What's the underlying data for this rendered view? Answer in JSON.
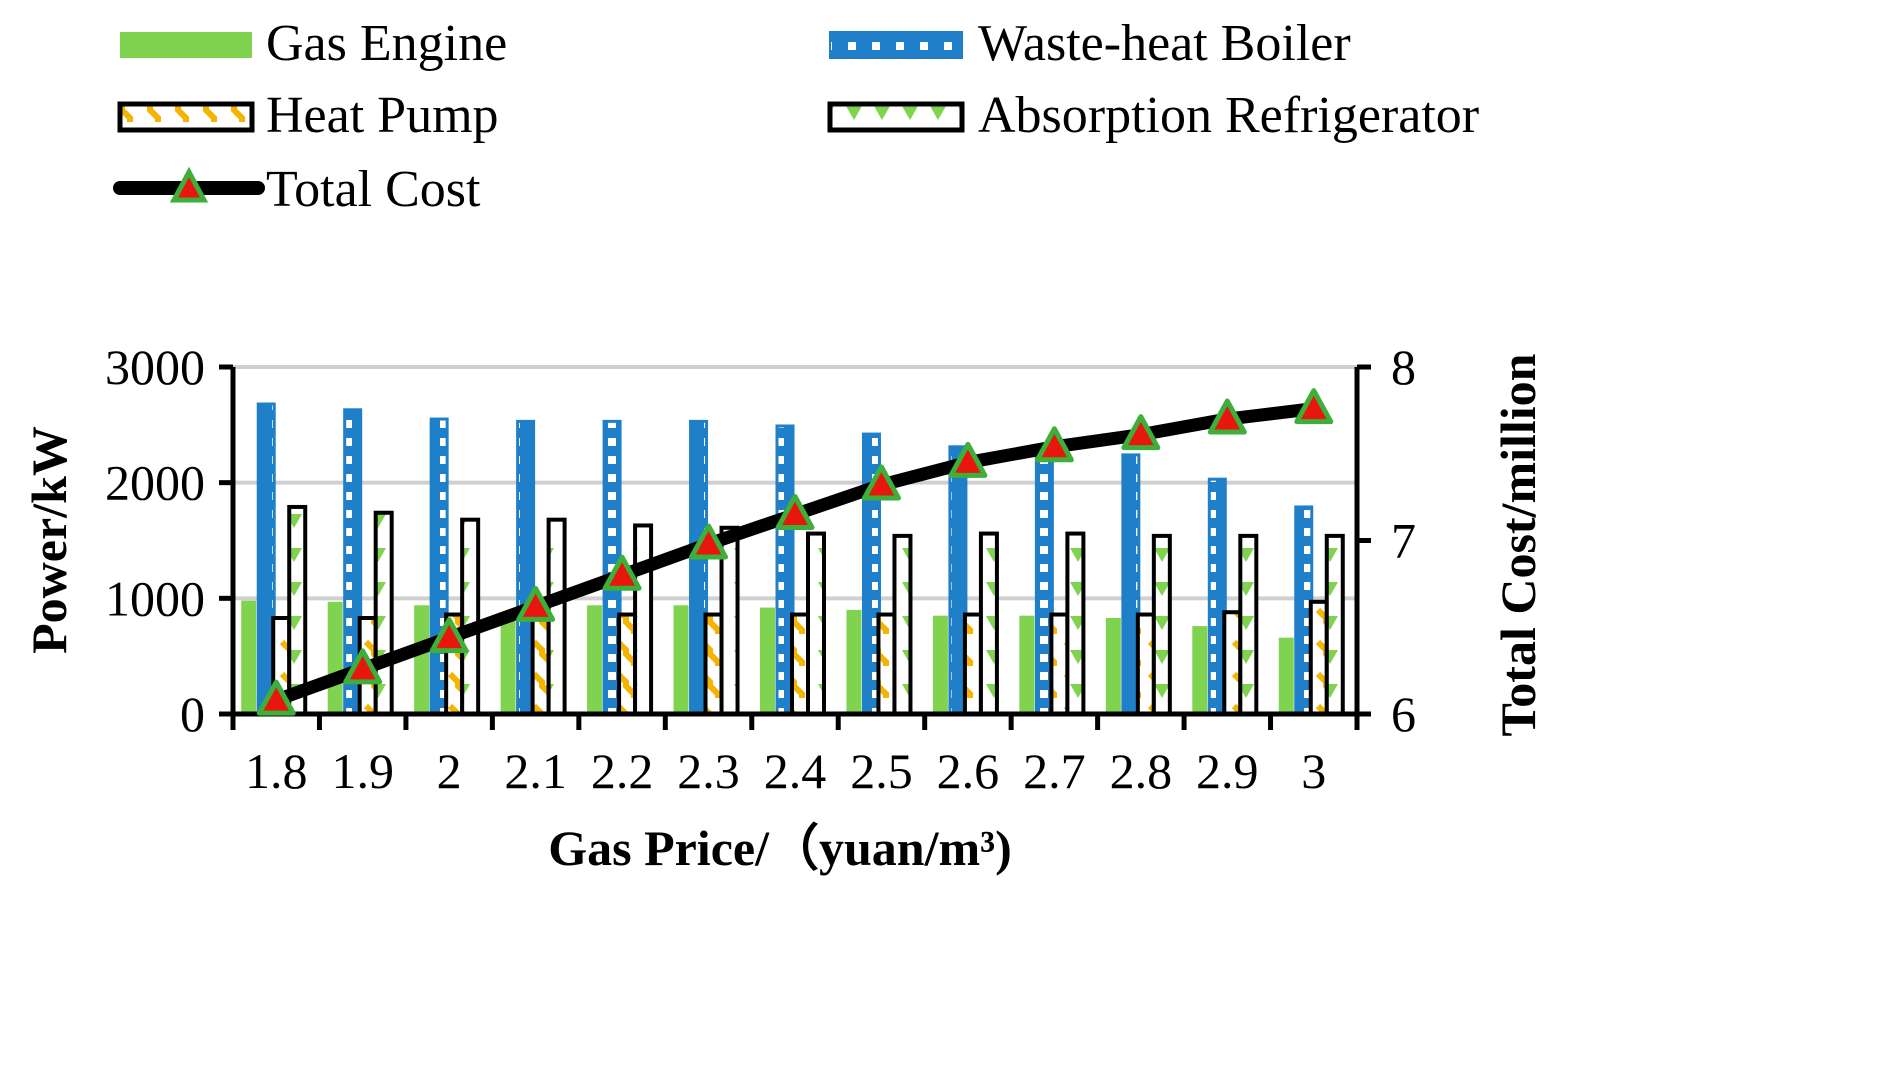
{
  "chart_data": {
    "type": "bar",
    "categories": [
      "1.8",
      "1.9",
      "2",
      "2.1",
      "2.2",
      "2.3",
      "2.4",
      "2.5",
      "2.6",
      "2.7",
      "2.8",
      "2.9",
      "3"
    ],
    "series": [
      {
        "name": "Gas Engine",
        "axis": "left",
        "kind": "bar",
        "color": "#7FD34E",
        "values": [
          980,
          970,
          940,
          830,
          940,
          940,
          920,
          900,
          850,
          850,
          830,
          760,
          660
        ]
      },
      {
        "name": "Waste-heat Boiler",
        "axis": "left",
        "kind": "bar",
        "color": "#1F7FC9",
        "values": [
          2680,
          2630,
          2550,
          2530,
          2530,
          2530,
          2490,
          2420,
          2310,
          2310,
          2240,
          2030,
          1790
        ]
      },
      {
        "name": "Heat Pump",
        "axis": "left",
        "kind": "bar",
        "color": "#F4B400",
        "values": [
          830,
          830,
          860,
          860,
          860,
          860,
          860,
          860,
          860,
          860,
          860,
          880,
          970
        ]
      },
      {
        "name": "Absorption Refrigerator",
        "axis": "left",
        "kind": "bar",
        "color": "#7FD34E",
        "values": [
          1790,
          1740,
          1680,
          1680,
          1630,
          1610,
          1560,
          1540,
          1560,
          1560,
          1540,
          1540,
          1540
        ]
      },
      {
        "name": "Total Cost",
        "axis": "right",
        "kind": "line",
        "color": "#000000",
        "marker_fill": "#E8160C",
        "marker_edge": "#3DAF3A",
        "values": [
          6.08,
          6.26,
          6.44,
          6.62,
          6.8,
          6.98,
          7.15,
          7.32,
          7.45,
          7.54,
          7.61,
          7.7,
          7.76
        ]
      }
    ],
    "title": "",
    "xlabel": "Gas Price/（yuan/m³)",
    "ylabel": "Power/kW",
    "y2label": "Total Cost/million",
    "ylim": [
      0,
      3000
    ],
    "y2lim": [
      6,
      8
    ],
    "yticks": [
      "0",
      "1000",
      "2000",
      "3000"
    ],
    "y2ticks": [
      "6",
      "7",
      "8"
    ],
    "grid": true,
    "legend_position": "top"
  }
}
